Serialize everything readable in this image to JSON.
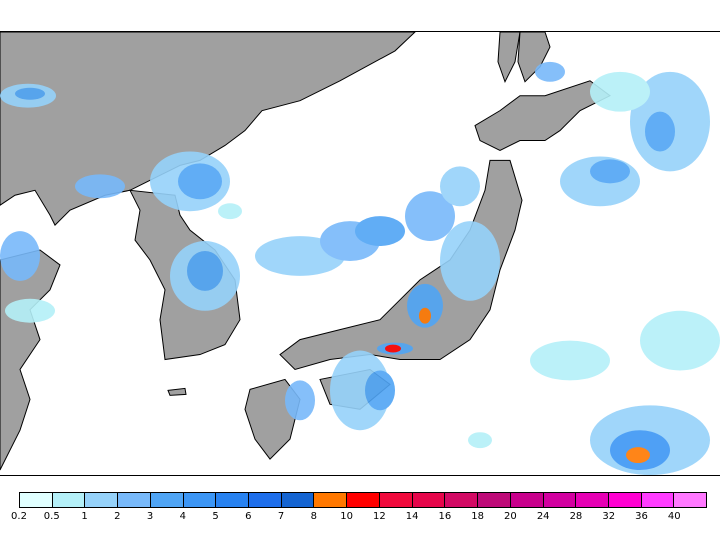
{
  "colorbar": {
    "labels": [
      "0.2",
      "0.5",
      "1",
      "2",
      "3",
      "4",
      "5",
      "6",
      "7",
      "8",
      "10",
      "12",
      "14",
      "16",
      "18",
      "20",
      "24",
      "28",
      "32",
      "36",
      "40"
    ],
    "colors": [
      "#e0ffff",
      "#b4f0f8",
      "#96d2fa",
      "#78b9fa",
      "#50a5f5",
      "#3c96f5",
      "#2882f0",
      "#1e6eeb",
      "#1464d2",
      "#ff7800",
      "#ff0000",
      "#f00a3c",
      "#e6064b",
      "#d20a64",
      "#be0a78",
      "#c8008c",
      "#d200a0",
      "#e600b4",
      "#ff00d2",
      "#ff3cff",
      "#ff78ff"
    ]
  },
  "map": {
    "land_color": "#a0a0a0",
    "sea_color": "#ffffff",
    "coast_color": "#000000"
  }
}
